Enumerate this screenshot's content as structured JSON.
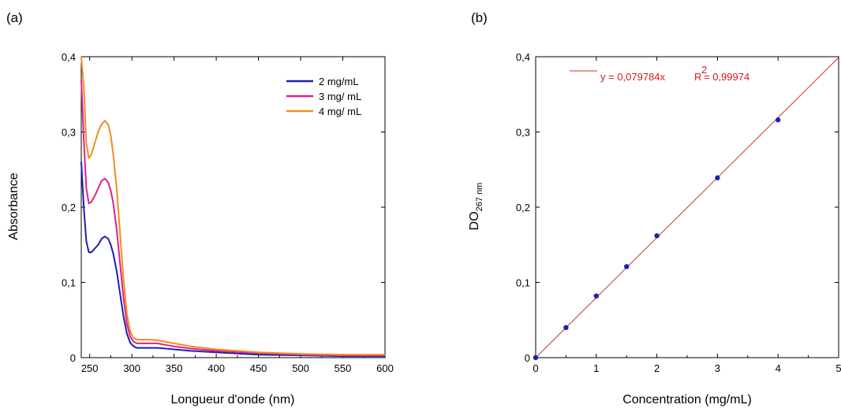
{
  "chart_data": [
    {
      "panel_label": "(a)",
      "type": "line",
      "xlabel": "Longueur d'onde (nm)",
      "ylabel": "Absorbance",
      "xlim": [
        240,
        600
      ],
      "ylim": [
        0,
        0.4
      ],
      "xticks": [
        250,
        300,
        350,
        400,
        450,
        500,
        550,
        600
      ],
      "yticks": [
        0,
        0.1,
        0.2,
        0.3,
        0.4
      ],
      "xtick_labels": [
        "250",
        "300",
        "350",
        "400",
        "450",
        "500",
        "550",
        "600"
      ],
      "ytick_labels": [
        "0",
        "0,1",
        "0,2",
        "0,3",
        "0,4"
      ],
      "legend_position": "top-right",
      "series": [
        {
          "name": "2 mg/mL",
          "color": "#1f1fb4",
          "x": [
            240,
            243,
            246,
            249,
            252,
            256,
            260,
            264,
            268,
            272,
            275,
            278,
            282,
            286,
            290,
            294,
            298,
            302,
            306,
            310,
            320,
            330,
            340,
            350,
            370,
            400,
            450,
            500,
            550,
            600
          ],
          "y": [
            0.26,
            0.2,
            0.155,
            0.14,
            0.14,
            0.145,
            0.15,
            0.158,
            0.161,
            0.158,
            0.15,
            0.138,
            0.115,
            0.085,
            0.055,
            0.032,
            0.02,
            0.015,
            0.013,
            0.013,
            0.013,
            0.013,
            0.012,
            0.011,
            0.009,
            0.007,
            0.004,
            0.003,
            0.002,
            0.002
          ]
        },
        {
          "name": "3 mg/ mL",
          "color": "#e0218a",
          "x": [
            240,
            243,
            246,
            249,
            252,
            256,
            260,
            264,
            268,
            272,
            275,
            278,
            282,
            286,
            290,
            294,
            298,
            302,
            306,
            310,
            320,
            330,
            340,
            350,
            370,
            400,
            450,
            500,
            550,
            600
          ],
          "y": [
            0.37,
            0.29,
            0.225,
            0.205,
            0.207,
            0.215,
            0.225,
            0.235,
            0.238,
            0.233,
            0.222,
            0.205,
            0.17,
            0.125,
            0.08,
            0.045,
            0.028,
            0.021,
            0.019,
            0.019,
            0.019,
            0.019,
            0.017,
            0.015,
            0.012,
            0.009,
            0.006,
            0.004,
            0.003,
            0.003
          ]
        },
        {
          "name": "4 mg/ mL",
          "color": "#f28c1e",
          "x": [
            240,
            243,
            246,
            249,
            252,
            256,
            260,
            264,
            268,
            272,
            275,
            278,
            282,
            286,
            290,
            294,
            298,
            302,
            306,
            310,
            320,
            330,
            340,
            350,
            370,
            400,
            450,
            500,
            550,
            600
          ],
          "y": [
            0.4,
            0.36,
            0.285,
            0.265,
            0.27,
            0.285,
            0.3,
            0.31,
            0.315,
            0.31,
            0.295,
            0.27,
            0.225,
            0.165,
            0.105,
            0.058,
            0.035,
            0.026,
            0.024,
            0.024,
            0.024,
            0.023,
            0.021,
            0.019,
            0.015,
            0.011,
            0.007,
            0.005,
            0.004,
            0.004
          ]
        }
      ]
    },
    {
      "panel_label": "(b)",
      "type": "scatter",
      "xlabel": "Concentration (mg/mL)",
      "ylabel_main": "DO",
      "ylabel_sub": "267 nm",
      "xlim": [
        0,
        5
      ],
      "ylim": [
        0,
        0.4
      ],
      "xticks": [
        0,
        1,
        2,
        3,
        4,
        5
      ],
      "yticks": [
        0,
        0.1,
        0.2,
        0.3,
        0.4
      ],
      "xtick_labels": [
        "0",
        "1",
        "2",
        "3",
        "4",
        "5"
      ],
      "ytick_labels": [
        "0",
        "0,1",
        "0,2",
        "0,3",
        "0,4"
      ],
      "point_color": "#1f1fb4",
      "line_color": "#c0392b",
      "x": [
        0,
        0.5,
        1,
        1.5,
        2,
        3,
        4
      ],
      "y": [
        0,
        0.04,
        0.082,
        0.121,
        0.162,
        0.239,
        0.316
      ],
      "fit": {
        "slope": 0.079784,
        "x0": 0,
        "x1": 5
      },
      "equation_text": "y = 0,079784x",
      "r2_prefix": "R",
      "r2_sup": "2",
      "r2_text": "= 0,99974"
    }
  ]
}
